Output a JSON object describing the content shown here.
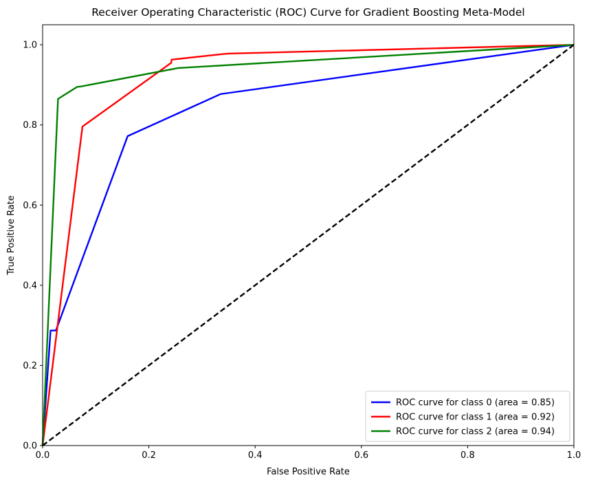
{
  "chart_data": {
    "type": "line",
    "title": "Receiver Operating Characteristic (ROC) Curve for Gradient Boosting Meta-Model",
    "xlabel": "False Positive Rate",
    "ylabel": "True Positive Rate",
    "xlim": [
      0.0,
      1.0
    ],
    "ylim": [
      0.0,
      1.05
    ],
    "xticks": [
      "0.0",
      "0.2",
      "0.4",
      "0.6",
      "0.8",
      "1.0"
    ],
    "yticks": [
      "0.0",
      "0.2",
      "0.4",
      "0.6",
      "0.8",
      "1.0"
    ],
    "grid": false,
    "legend_position": "lower-right",
    "series": [
      {
        "name": "ROC curve for class 0 (area = 0.85)",
        "color": "#0000ff",
        "x": [
          0.0,
          0.015,
          0.025,
          0.16,
          0.335,
          0.34,
          1.0
        ],
        "y": [
          0.0,
          0.287,
          0.287,
          0.772,
          0.877,
          0.878,
          1.0
        ]
      },
      {
        "name": "ROC curve for class 1 (area = 0.92)",
        "color": "#ff0000",
        "x": [
          0.0,
          0.075,
          0.242,
          0.243,
          0.34,
          0.35,
          1.0
        ],
        "y": [
          0.0,
          0.796,
          0.955,
          0.963,
          0.977,
          0.978,
          1.0
        ]
      },
      {
        "name": "ROC curve for class 2 (area = 0.94)",
        "color": "#008000",
        "x": [
          0.0,
          0.029,
          0.065,
          0.072,
          0.255,
          1.0
        ],
        "y": [
          0.0,
          0.865,
          0.895,
          0.896,
          0.942,
          1.0
        ]
      },
      {
        "name": "",
        "color": "#000000",
        "dashed": true,
        "x": [
          0.0,
          1.0
        ],
        "y": [
          0.0,
          1.0
        ]
      }
    ]
  }
}
